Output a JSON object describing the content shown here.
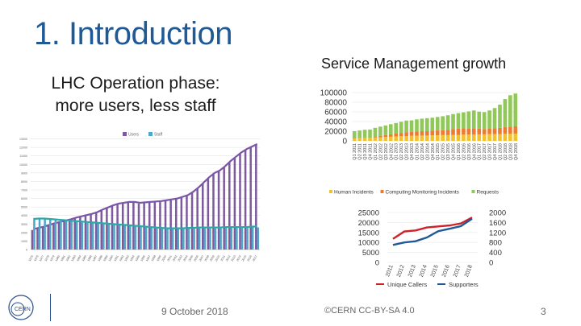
{
  "slide": {
    "title": "1. Introduction",
    "subtitle_line1": "LHC Operation phase:",
    "subtitle_line2": "more users, less staff",
    "service_title": "Service Management growth",
    "footer_date": "9 October 2018",
    "footer_license": "©CERN CC-BY-SA 4.0",
    "page_number": "3",
    "logo_icon": "cern-logo-icon"
  },
  "chart_data": [
    {
      "type": "bar",
      "id": "users-staff",
      "title": "",
      "legend": [
        "Users",
        "Staff"
      ],
      "legend_position": "top-center",
      "series_colors": [
        "#7d5a9e",
        "#4fa6c8"
      ],
      "categories": [
        "1975",
        "1976",
        "1977",
        "1978",
        "1979",
        "1980",
        "1981",
        "1982",
        "1983",
        "1984",
        "1985",
        "1986",
        "1987",
        "1988",
        "1989",
        "1990",
        "1991",
        "1992",
        "1993",
        "1994",
        "1995",
        "1996",
        "1997",
        "1998",
        "1999",
        "2000",
        "2001",
        "2002",
        "2003",
        "2004",
        "2005",
        "2006",
        "2007",
        "2008",
        "2009",
        "2010",
        "2011",
        "2012",
        "2013",
        "2014",
        "2015",
        "2016",
        "2017"
      ],
      "ylim": [
        0,
        14000
      ],
      "yticks": [
        "0",
        "1000",
        "2000",
        "3000",
        "4000",
        "5000",
        "6000",
        "7000",
        "8000",
        "9000",
        "10000",
        "11000",
        "12000",
        "13000"
      ],
      "series": [
        {
          "name": "Users",
          "values": [
            2300,
            2450,
            2600,
            2800,
            3000,
            3150,
            3300,
            3450,
            3650,
            3800,
            3950,
            4100,
            4300,
            4600,
            4850,
            5100,
            5300,
            5400,
            5500,
            5500,
            5400,
            5450,
            5500,
            5550,
            5600,
            5700,
            5800,
            5900,
            6100,
            6300,
            6700,
            7200,
            7800,
            8400,
            8900,
            9200,
            9700,
            10300,
            10800,
            11300,
            11700,
            12000,
            12300
          ]
        },
        {
          "name": "Staff",
          "values": [
            3500,
            3550,
            3550,
            3500,
            3450,
            3400,
            3350,
            3300,
            3250,
            3200,
            3150,
            3100,
            3050,
            3000,
            2950,
            2900,
            2850,
            2800,
            2750,
            2700,
            2650,
            2600,
            2550,
            2500,
            2450,
            2400,
            2400,
            2400,
            2400,
            2450,
            2450,
            2500,
            2500,
            2500,
            2500,
            2500,
            2550,
            2550,
            2550,
            2550,
            2550,
            2600,
            2600
          ]
        }
      ],
      "trend_lines": true
    },
    {
      "type": "bar",
      "id": "service-management",
      "title": "Service Management growth",
      "stacked": true,
      "ylim": [
        0,
        100000
      ],
      "yticks": [
        "100000",
        "80000",
        "60000",
        "40000",
        "20000",
        "0"
      ],
      "categories": [
        "Q1 2011",
        "Q2 2011",
        "Q3 2011",
        "Q4 2011",
        "Q1 2012",
        "Q2 2012",
        "Q3 2012",
        "Q4 2012",
        "Q1 2013",
        "Q2 2013",
        "Q3 2013",
        "Q4 2013",
        "Q1 2014",
        "Q2 2014",
        "Q3 2014",
        "Q4 2014",
        "Q1 2015",
        "Q2 2015",
        "Q3 2015",
        "Q4 2015",
        "Q1 2016",
        "Q2 2016",
        "Q3 2016",
        "Q4 2016",
        "Q1 2017",
        "Q2 2017",
        "Q3 2017",
        "Q4 2017",
        "Q1 2018",
        "Q2 2018",
        "Q3 2018",
        "Q4 2018"
      ],
      "legend": [
        "Human Incidents",
        "Computing Monitoring Incidents",
        "Requests"
      ],
      "legend_position": "bottom",
      "series_colors": [
        "#f2c12e",
        "#ee7b30",
        "#90c95a"
      ],
      "series": [
        {
          "name": "Human Incidents",
          "values": [
            5000,
            5500,
            6000,
            6500,
            7000,
            7500,
            8000,
            8500,
            9000,
            9500,
            10000,
            10500,
            10500,
            11000,
            11000,
            11500,
            11500,
            12000,
            12000,
            12500,
            12500,
            13000,
            13000,
            13000,
            13500,
            13500,
            14000,
            14000,
            14000,
            14500,
            14500,
            15000
          ]
        },
        {
          "name": "Computing Monitoring Incidents",
          "values": [
            0,
            0,
            0,
            0,
            2000,
            3000,
            4000,
            5000,
            6000,
            7000,
            8000,
            8000,
            9000,
            9000,
            9000,
            9500,
            10000,
            10000,
            11000,
            12000,
            13000,
            13000,
            12000,
            12000,
            12000,
            11000,
            11000,
            12000,
            13000,
            14000,
            15000,
            15000
          ]
        },
        {
          "name": "Requests",
          "values": [
            15000,
            16000,
            17000,
            17000,
            18000,
            19000,
            20000,
            21000,
            22000,
            23000,
            24000,
            24000,
            25000,
            26000,
            27000,
            27000,
            28000,
            29000,
            30000,
            31000,
            32000,
            33000,
            36000,
            38000,
            35000,
            35000,
            38000,
            42000,
            48000,
            58000,
            65000,
            68000
          ]
        }
      ]
    },
    {
      "type": "line",
      "id": "callers-supporters",
      "categories": [
        "2011",
        "2012",
        "2013",
        "2014",
        "2015",
        "2016",
        "2017",
        "2018"
      ],
      "legend": [
        "Unique Callers",
        "Supporters"
      ],
      "legend_position": "bottom",
      "series_colors": [
        "#d0202a",
        "#1f5a96"
      ],
      "left_axis": {
        "ylim": [
          0,
          25000
        ],
        "yticks": [
          "25000",
          "20000",
          "15000",
          "10000",
          "5000",
          "0"
        ]
      },
      "right_axis": {
        "ylim": [
          0,
          2000
        ],
        "yticks": [
          "2000",
          "1600",
          "1200",
          "800",
          "400",
          "0"
        ]
      },
      "series": [
        {
          "name": "Unique Callers",
          "axis": "left",
          "values": [
            11800,
            15500,
            16000,
            17500,
            18000,
            18500,
            19500,
            22500
          ]
        },
        {
          "name": "Supporters",
          "axis": "right",
          "values": [
            700,
            800,
            850,
            1000,
            1250,
            1350,
            1450,
            1750
          ]
        }
      ]
    }
  ]
}
